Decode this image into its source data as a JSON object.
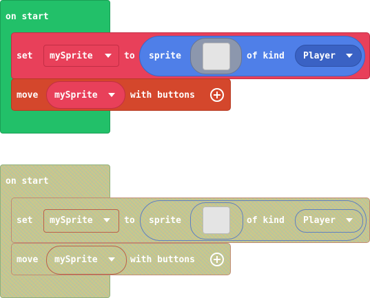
{
  "blocks": [
    {
      "state": "enabled",
      "hat_label": "on start",
      "set": {
        "keyword": "set",
        "variable": "mySprite",
        "to": "to",
        "sprite_label": "sprite",
        "of_kind": "of kind",
        "kind_value": "Player"
      },
      "move": {
        "keyword": "move",
        "variable": "mySprite",
        "with_buttons": "with buttons"
      }
    },
    {
      "state": "disabled",
      "hat_label": "on start",
      "set": {
        "keyword": "set",
        "variable": "mySprite",
        "to": "to",
        "sprite_label": "sprite",
        "of_kind": "of kind",
        "kind_value": "Player"
      },
      "move": {
        "keyword": "move",
        "variable": "mySprite",
        "with_buttons": "with buttons"
      }
    }
  ],
  "colors": {
    "on_start": "#22c069",
    "set_block": "#e8405a",
    "sprite_block": "#4f7fe8",
    "kind_dropdown": "#3a62c4",
    "move_block": "#d4472c",
    "disabled_fill": "#c9c98a"
  },
  "icons": [
    "dropdown-caret-icon",
    "add-circle-icon",
    "image-placeholder-icon"
  ]
}
